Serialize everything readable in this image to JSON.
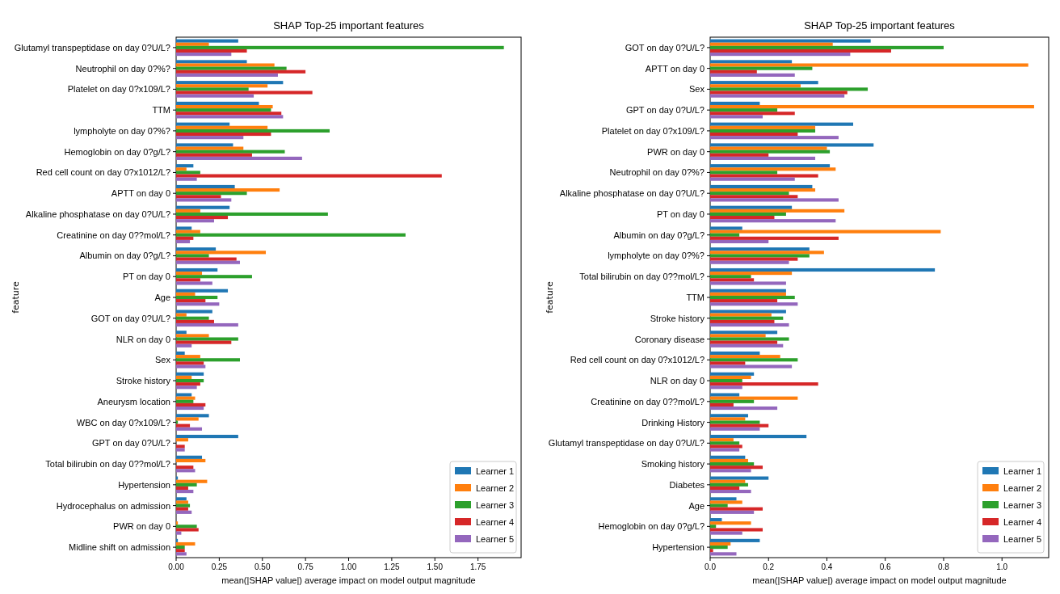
{
  "chart_data": [
    {
      "type": "bar",
      "orientation": "horizontal",
      "title": "SHAP Top-25 important features",
      "xlabel": "mean(|SHAP value|) average impact on model output magnitude",
      "ylabel": "feature",
      "legend": "bottom right",
      "grid": false,
      "categories": [
        "Glutamyl transpeptidase on day 0?U/L?",
        "Neutrophil on day 0?%?",
        "Platelet on day 0?x109/L?",
        "TTM",
        "lympholyte on day 0?%?",
        "Hemoglobin on day 0?g/L?",
        "Red cell count on day 0?x1012/L?",
        "APTT on day 0",
        "Alkaline phosphatase on day 0?U/L?",
        "Creatinine on day 0??mol/L?",
        "Albumin on day 0?g/L?",
        "PT on day 0",
        "Age",
        "GOT on day 0?U/L?",
        "NLR on day 0",
        "Sex",
        "Stroke history",
        "Aneurysm location",
        "WBC on day 0?x109/L?",
        "GPT on day 0?U/L?",
        "Total bilirubin on day 0??mol/L?",
        "Hypertension",
        "Hydrocephalus on admission",
        "PWR on day 0",
        "Midline shift on admission"
      ],
      "xlim": [
        0,
        2.0
      ],
      "xticks": [
        {
          "value": 0,
          "label": "0.00"
        },
        {
          "value": 0.25,
          "label": "0.25"
        },
        {
          "value": 0.5,
          "label": "0.50"
        },
        {
          "value": 0.75,
          "label": "0.75"
        },
        {
          "value": 1.0,
          "label": "1.00"
        },
        {
          "value": 1.25,
          "label": "1.25"
        },
        {
          "value": 1.5,
          "label": "1.50"
        },
        {
          "value": 1.75,
          "label": "1.75"
        }
      ],
      "series": [
        {
          "name": "Learner 1",
          "color": "#1f77b4",
          "values": [
            0.36,
            0.41,
            0.62,
            0.48,
            0.31,
            0.33,
            0.1,
            0.34,
            0.31,
            0.09,
            0.23,
            0.24,
            0.3,
            0.21,
            0.06,
            0.05,
            0.16,
            0.09,
            0.19,
            0.36,
            0.15,
            0.01,
            0.06,
            0.0,
            0.01
          ]
        },
        {
          "name": "Learner 2",
          "color": "#ff7f0e",
          "values": [
            0.19,
            0.57,
            0.53,
            0.56,
            0.53,
            0.39,
            0.06,
            0.6,
            0.14,
            0.14,
            0.52,
            0.15,
            0.11,
            0.06,
            0.19,
            0.14,
            0.09,
            0.11,
            0.13,
            0.07,
            0.17,
            0.18,
            0.07,
            0.01,
            0.11
          ]
        },
        {
          "name": "Learner 3",
          "color": "#2ca02c",
          "values": [
            1.9,
            0.64,
            0.42,
            0.55,
            0.89,
            0.63,
            0.14,
            0.41,
            0.88,
            1.33,
            0.19,
            0.44,
            0.24,
            0.19,
            0.36,
            0.37,
            0.16,
            0.1,
            0.01,
            0.0,
            0.0,
            0.12,
            0.08,
            0.12,
            0.05
          ]
        },
        {
          "name": "Learner 4",
          "color": "#d62728",
          "values": [
            0.41,
            0.75,
            0.79,
            0.61,
            0.55,
            0.44,
            1.54,
            0.26,
            0.3,
            0.1,
            0.35,
            0.14,
            0.17,
            0.22,
            0.32,
            0.16,
            0.14,
            0.17,
            0.08,
            0.05,
            0.1,
            0.07,
            0.07,
            0.13,
            0.05
          ]
        },
        {
          "name": "Learner 5",
          "color": "#9467bd",
          "values": [
            0.32,
            0.59,
            0.45,
            0.62,
            0.39,
            0.73,
            0.12,
            0.32,
            0.22,
            0.08,
            0.37,
            0.21,
            0.25,
            0.36,
            0.09,
            0.17,
            0.12,
            0.16,
            0.15,
            0.05,
            0.11,
            0.1,
            0.09,
            0.03,
            0.06
          ]
        }
      ]
    },
    {
      "type": "bar",
      "orientation": "horizontal",
      "title": "SHAP Top-25 important features",
      "xlabel": "mean(|SHAP value|) average impact on model output magnitude",
      "ylabel": "feature",
      "legend": "bottom right",
      "grid": false,
      "categories": [
        "GOT on day 0?U/L?",
        "APTT on day 0",
        "Sex",
        "GPT on day 0?U/L?",
        "Platelet on day 0?x109/L?",
        "PWR on day 0",
        "Neutrophil on day 0?%?",
        "Alkaline phosphatase on day 0?U/L?",
        "PT on day 0",
        "Albumin on day 0?g/L?",
        "lympholyte on day 0?%?",
        "Total bilirubin on day 0??mol/L?",
        "TTM",
        "Stroke history",
        "Coronary disease",
        "Red cell count on day 0?x1012/L?",
        "NLR on day 0",
        "Creatinine on day 0??mol/L?",
        "Drinking History",
        "Glutamyl transpeptidase on day 0?U/L?",
        "Smoking history",
        "Diabetes",
        "Age",
        "Hemoglobin on day 0?g/L?",
        "Hypertension"
      ],
      "xlim": [
        0,
        1.16
      ],
      "xticks": [
        {
          "value": 0,
          "label": "0.0"
        },
        {
          "value": 0.2,
          "label": "0.2"
        },
        {
          "value": 0.4,
          "label": "0.4"
        },
        {
          "value": 0.6,
          "label": "0.6"
        },
        {
          "value": 0.8,
          "label": "0.8"
        },
        {
          "value": 1.0,
          "label": "1.0"
        }
      ],
      "series": [
        {
          "name": "Learner 1",
          "color": "#1f77b4",
          "values": [
            0.55,
            0.28,
            0.37,
            0.17,
            0.49,
            0.56,
            0.41,
            0.35,
            0.28,
            0.11,
            0.34,
            0.77,
            0.26,
            0.26,
            0.23,
            0.17,
            0.15,
            0.1,
            0.13,
            0.33,
            0.12,
            0.2,
            0.09,
            0.04,
            0.17
          ]
        },
        {
          "name": "Learner 2",
          "color": "#ff7f0e",
          "values": [
            0.42,
            1.09,
            0.31,
            1.11,
            0.36,
            0.4,
            0.43,
            0.36,
            0.46,
            0.79,
            0.39,
            0.28,
            0.26,
            0.21,
            0.19,
            0.24,
            0.14,
            0.3,
            0.12,
            0.08,
            0.13,
            0.12,
            0.11,
            0.14,
            0.07
          ]
        },
        {
          "name": "Learner 3",
          "color": "#2ca02c",
          "values": [
            0.8,
            0.35,
            0.54,
            0.23,
            0.36,
            0.41,
            0.23,
            0.27,
            0.26,
            0.1,
            0.34,
            0.14,
            0.29,
            0.25,
            0.27,
            0.3,
            0.11,
            0.15,
            0.17,
            0.1,
            0.15,
            0.13,
            0.06,
            0.02,
            0.06
          ]
        },
        {
          "name": "Learner 4",
          "color": "#d62728",
          "values": [
            0.62,
            0.16,
            0.47,
            0.29,
            0.3,
            0.2,
            0.37,
            0.3,
            0.22,
            0.44,
            0.3,
            0.15,
            0.23,
            0.22,
            0.23,
            0.12,
            0.37,
            0.08,
            0.2,
            0.11,
            0.18,
            0.1,
            0.18,
            0.18,
            0.01
          ]
        },
        {
          "name": "Learner 5",
          "color": "#9467bd",
          "values": [
            0.48,
            0.29,
            0.46,
            0.18,
            0.44,
            0.36,
            0.29,
            0.44,
            0.43,
            0.2,
            0.27,
            0.26,
            0.3,
            0.27,
            0.25,
            0.28,
            0.11,
            0.23,
            0.17,
            0.1,
            0.14,
            0.14,
            0.15,
            0.11,
            0.09
          ]
        }
      ]
    }
  ]
}
